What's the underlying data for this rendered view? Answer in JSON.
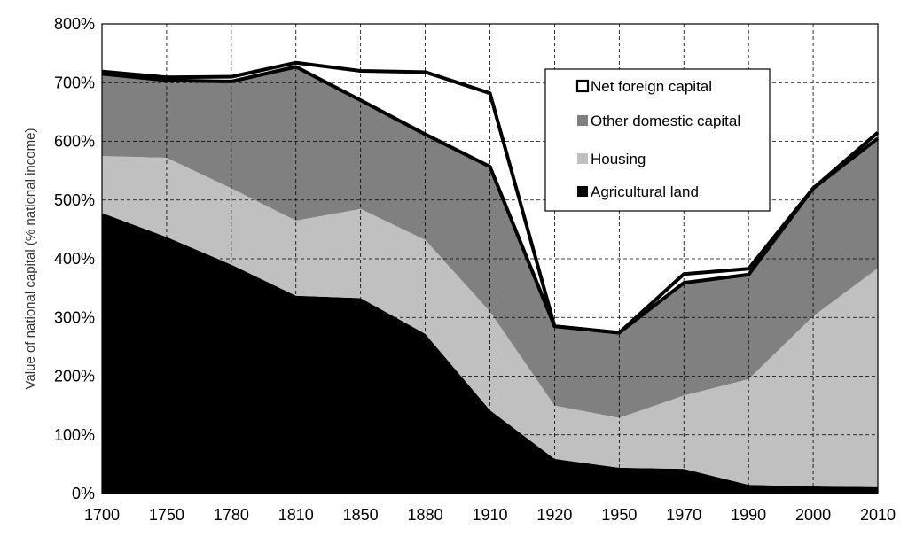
{
  "chart_data": {
    "type": "area",
    "title": "",
    "xlabel": "",
    "ylabel": "Value of national capital (% national income)",
    "categories": [
      "1700",
      "1750",
      "1780",
      "1810",
      "1850",
      "1880",
      "1910",
      "1920",
      "1950",
      "1970",
      "1990",
      "2000",
      "2010"
    ],
    "ylim": [
      0,
      800
    ],
    "yticks": [
      "0%",
      "100%",
      "200%",
      "300%",
      "400%",
      "500%",
      "600%",
      "700%",
      "800%"
    ],
    "grid": true,
    "legend_position": "top-right",
    "stacked": true,
    "series": [
      {
        "name": "Agricultural land",
        "color": "#000000",
        "values": [
          478,
          437,
          390,
          337,
          333,
          272,
          142,
          59,
          44,
          42,
          15,
          12,
          11
        ]
      },
      {
        "name": "Housing",
        "color": "#c0c0c0",
        "values": [
          97,
          135,
          130,
          128,
          152,
          160,
          168,
          91,
          85,
          125,
          180,
          290,
          373
        ]
      },
      {
        "name": "Other domestic capital",
        "color": "#808080",
        "values": [
          140,
          132,
          182,
          262,
          185,
          180,
          247,
          135,
          145,
          192,
          178,
          218,
          221
        ]
      },
      {
        "name": "Net foreign capital",
        "color": "#ffffff",
        "edge": "#000000",
        "values": [
          4,
          5,
          8,
          7,
          50,
          106,
          125,
          0,
          0,
          15,
          10,
          0,
          10
        ]
      }
    ]
  }
}
